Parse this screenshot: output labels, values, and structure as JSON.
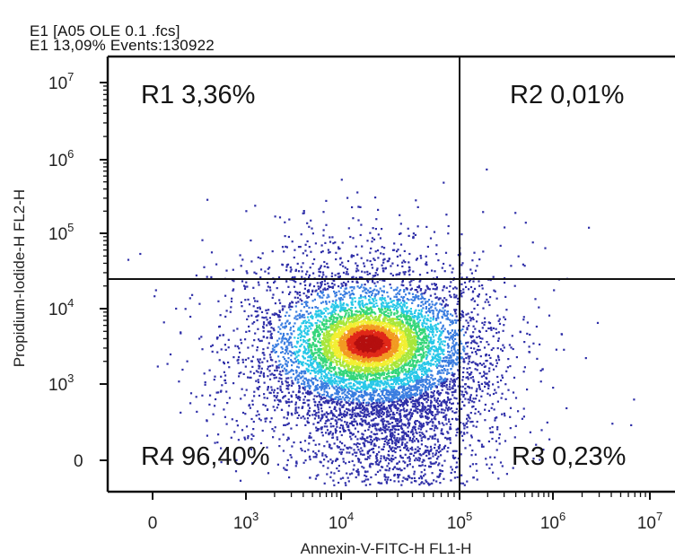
{
  "header": {
    "line1": "E1 [A05 OLE 0.1 .fcs]",
    "line2": "E1  13,09% Events:130922"
  },
  "chart_data": {
    "type": "scatter",
    "subtype": "flow-cytometry density dot plot",
    "xlabel": "Annexin-V-FITC-H FL1-H",
    "ylabel": "Propidium-Iodide-H FL2-H",
    "x_ticks": [
      "0",
      "10^3",
      "10^4",
      "10^5",
      "10^6",
      "10^7"
    ],
    "y_ticks": [
      "0",
      "10^3",
      "10^4",
      "10^5",
      "10^6",
      "10^7"
    ],
    "x_scale": "biexponential (linear near 0, log above 10^3)",
    "y_scale": "biexponential (linear near 0, log above 10^3)",
    "gates": {
      "x_threshold": 100000,
      "y_threshold": 20000
    },
    "quadrants": [
      {
        "id": "R1",
        "label": "R1 3,36%",
        "percent": 3.36,
        "position": "upper-left"
      },
      {
        "id": "R2",
        "label": "R2 0,01%",
        "percent": 0.01,
        "position": "upper-right"
      },
      {
        "id": "R3",
        "label": "R3 0,23%",
        "percent": 0.23,
        "position": "lower-right"
      },
      {
        "id": "R4",
        "label": "R4 96,40%",
        "percent": 96.4,
        "position": "lower-left"
      }
    ],
    "population_peak": {
      "x": 11000,
      "y": 2800
    },
    "density_colormap": [
      "#2f2fa8",
      "#3a7de0",
      "#28c8e8",
      "#35d67a",
      "#a8e63a",
      "#f2ef32",
      "#f29a22",
      "#e02818",
      "#b40f0f"
    ],
    "grid": false,
    "legend": "none"
  }
}
